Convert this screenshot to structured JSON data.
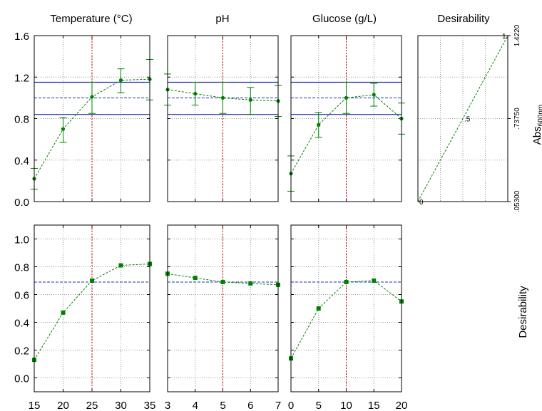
{
  "chart_data": {
    "type": "line",
    "columns": [
      {
        "title": "Temperature (°C)",
        "x_ticks": [
          "15",
          "20",
          "25",
          "30",
          "35"
        ],
        "xlim": [
          15,
          35
        ],
        "x_current": 25
      },
      {
        "title": "pH",
        "x_ticks": [
          "3",
          "4",
          "5",
          "6",
          "7"
        ],
        "xlim": [
          3,
          7
        ],
        "x_current": 5
      },
      {
        "title": "Glucose (g/L)",
        "x_ticks": [
          "0",
          "5",
          "10",
          "15",
          "20"
        ],
        "xlim": [
          0,
          20
        ],
        "x_current": 10
      },
      {
        "title": "Desirability"
      }
    ],
    "response_row": {
      "ylabel_main": "Abs",
      "ylabel_sub": "600nm",
      "y_ticks": [
        "0.0",
        "0.4",
        "0.8",
        "1.2",
        "1.6"
      ],
      "ylim": [
        0,
        1.6
      ],
      "predicted": 1.0,
      "ci_upper": 1.15,
      "ci_lower": 0.84,
      "panels": [
        {
          "x": [
            15,
            20,
            25,
            30,
            35
          ],
          "y": [
            0.22,
            0.7,
            1.01,
            1.17,
            1.18
          ],
          "err_lo": [
            0.12,
            0.57,
            0.85,
            1.05,
            0.98
          ],
          "err_hi": [
            0.32,
            0.81,
            1.15,
            1.28,
            1.37
          ]
        },
        {
          "x": [
            3,
            4,
            5,
            6,
            7
          ],
          "y": [
            1.08,
            1.04,
            1.0,
            0.98,
            0.97
          ],
          "err_lo": [
            0.93,
            0.93,
            0.85,
            0.84,
            0.82
          ],
          "err_hi": [
            1.23,
            1.15,
            1.15,
            1.1,
            1.12
          ]
        },
        {
          "x": [
            0,
            5,
            10,
            15,
            20
          ],
          "y": [
            0.27,
            0.74,
            1.0,
            1.03,
            0.8
          ],
          "err_lo": [
            0.1,
            0.62,
            0.85,
            0.92,
            0.65
          ],
          "err_hi": [
            0.44,
            0.86,
            1.15,
            1.14,
            0.95
          ]
        }
      ]
    },
    "desirability_panel": {
      "right_ticks": [
        "1.4220",
        "0.7375",
        "0.0530"
      ],
      "right_tick_labels": [
        "1.4220",
        ".73750",
        ".05300"
      ],
      "x": [
        0.053,
        0.7375,
        1.422
      ],
      "y": [
        0,
        0.5,
        1
      ],
      "point_labels": [
        "0",
        ".5",
        "1."
      ]
    },
    "desirability_row": {
      "ylabel": "Desirability",
      "y_ticks": [
        "0.0",
        "0.2",
        "0.4",
        "0.6",
        "0.8",
        "1.0"
      ],
      "ylim": [
        -0.1,
        1.1
      ],
      "overall": 0.69,
      "panels": [
        {
          "x": [
            15,
            20,
            25,
            30,
            35
          ],
          "y": [
            0.13,
            0.47,
            0.7,
            0.81,
            0.82
          ]
        },
        {
          "x": [
            3,
            4,
            5,
            6,
            7
          ],
          "y": [
            0.75,
            0.72,
            0.69,
            0.68,
            0.67
          ]
        },
        {
          "x": [
            0,
            5,
            10,
            15,
            20
          ],
          "y": [
            0.14,
            0.5,
            0.69,
            0.7,
            0.55
          ]
        }
      ]
    },
    "colors": {
      "series": "#008000",
      "ci": "#1f2fb0",
      "predicted": "#1f2fb0",
      "current": "#cc0000",
      "grid": "#9a9a9a"
    },
    "grid": true
  }
}
